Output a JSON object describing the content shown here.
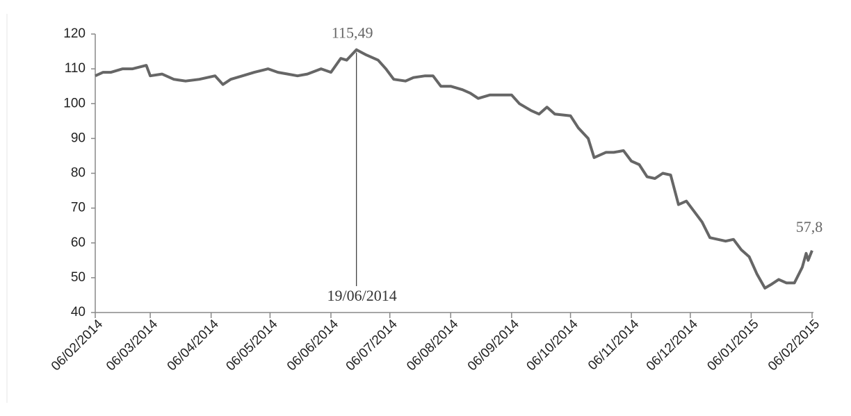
{
  "chart_data": {
    "type": "line",
    "x": [
      "06/02/2014",
      "10/02/2014",
      "14/02/2014",
      "20/02/2014",
      "25/02/2014",
      "04/03/2014",
      "06/03/2014",
      "12/03/2014",
      "18/03/2014",
      "24/03/2014",
      "31/03/2014",
      "04/04/2014",
      "08/04/2014",
      "12/04/2014",
      "16/04/2014",
      "22/04/2014",
      "28/04/2014",
      "05/05/2014",
      "10/05/2014",
      "15/05/2014",
      "20/05/2014",
      "25/05/2014",
      "01/06/2014",
      "06/06/2014",
      "11/06/2014",
      "14/06/2014",
      "19/06/2014",
      "24/06/2014",
      "30/06/2014",
      "04/07/2014",
      "08/07/2014",
      "14/07/2014",
      "18/07/2014",
      "24/07/2014",
      "28/07/2014",
      "01/08/2014",
      "06/08/2014",
      "12/08/2014",
      "16/08/2014",
      "20/08/2014",
      "26/08/2014",
      "01/09/2014",
      "06/09/2014",
      "10/09/2014",
      "16/09/2014",
      "20/09/2014",
      "24/09/2014",
      "28/09/2014",
      "06/10/2014",
      "10/10/2014",
      "15/10/2014",
      "18/10/2014",
      "24/10/2014",
      "28/10/2014",
      "02/11/2014",
      "06/11/2014",
      "10/11/2014",
      "14/11/2014",
      "18/11/2014",
      "22/11/2014",
      "26/11/2014",
      "30/11/2014",
      "04/12/2014",
      "08/12/2014",
      "12/12/2014",
      "16/12/2014",
      "20/12/2014",
      "24/12/2014",
      "28/12/2014",
      "01/01/2015",
      "05/01/2015",
      "09/01/2015",
      "13/01/2015",
      "16/01/2015",
      "20/01/2015",
      "24/01/2015",
      "28/01/2015",
      "01/02/2015",
      "03/02/2015",
      "04/02/2015",
      "06/02/2015"
    ],
    "series": [
      {
        "color": "#666666",
        "values": [
          108,
          109,
          109,
          110,
          110,
          111,
          108,
          108.5,
          107,
          106.5,
          107,
          107.5,
          108,
          105.5,
          107,
          108,
          109,
          110,
          109,
          108.5,
          108,
          108.5,
          110,
          109,
          113,
          112.5,
          115.49,
          114,
          112.5,
          110,
          107,
          106.5,
          107.5,
          108,
          108,
          105,
          105,
          104,
          103,
          101.5,
          102.5,
          102.5,
          102.5,
          100,
          98,
          97,
          99,
          97,
          96.5,
          93,
          90,
          84.5,
          86,
          86,
          86.5,
          83.5,
          82.5,
          79,
          78.5,
          80,
          79.5,
          71,
          72,
          69,
          66,
          61.5,
          61,
          60.5,
          61,
          58,
          56,
          51,
          47,
          48,
          49.5,
          48.5,
          48.5,
          53,
          57,
          55,
          57.8
        ]
      }
    ],
    "ylim": [
      40,
      120
    ],
    "yticks": [
      40,
      50,
      60,
      70,
      80,
      90,
      100,
      110,
      120
    ],
    "xlim": [
      "06/02/2014",
      "06/02/2015"
    ],
    "xticks": [
      "06/02/2014",
      "06/03/2014",
      "06/04/2014",
      "06/05/2014",
      "06/06/2014",
      "06/07/2014",
      "06/08/2014",
      "06/09/2014",
      "06/10/2014",
      "06/11/2014",
      "06/12/2014",
      "06/01/2015",
      "06/02/2015"
    ],
    "annotations": [
      {
        "label": "115,49",
        "date": "19/06/2014",
        "value": 115.49
      },
      {
        "label": "57,8",
        "date": "06/02/2015",
        "value": 57.8
      }
    ]
  }
}
